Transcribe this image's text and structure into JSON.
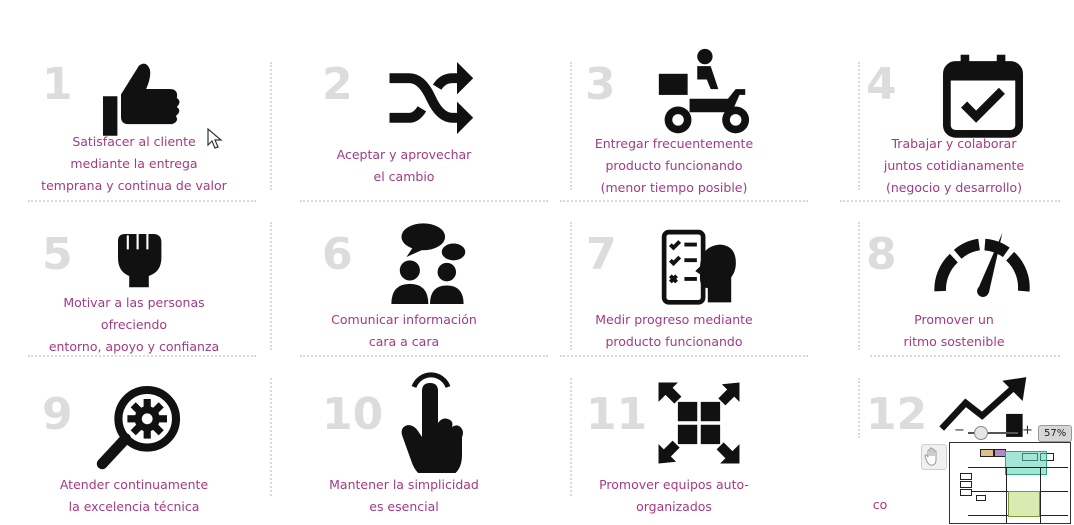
{
  "principles": [
    {
      "number": "1",
      "icon": "thumbs-up-icon",
      "lines": [
        "Satisfacer al cliente",
        "mediante la entrega",
        "temprana y continua de valor"
      ]
    },
    {
      "number": "2",
      "icon": "shuffle-arrows-icon",
      "lines": [
        "Aceptar y aprovechar",
        "el cambio"
      ]
    },
    {
      "number": "3",
      "icon": "delivery-scooter-icon",
      "lines": [
        "Entregar frecuentemente",
        "producto funcionando",
        "(menor tiempo posible)"
      ]
    },
    {
      "number": "4",
      "icon": "calendar-check-icon",
      "lines": [
        "Trabajar y colaborar",
        "juntos cotidianamente",
        "(negocio y desarrollo)"
      ]
    },
    {
      "number": "5",
      "icon": "raised-fist-icon",
      "lines": [
        "Motivar a las personas",
        "ofreciendo",
        "entorno, apoyo y confianza"
      ]
    },
    {
      "number": "6",
      "icon": "people-talking-icon",
      "lines": [
        "Comunicar información",
        "cara a cara"
      ]
    },
    {
      "number": "7",
      "icon": "checklist-person-icon",
      "lines": [
        "Medir progreso mediante",
        "producto funcionando"
      ]
    },
    {
      "number": "8",
      "icon": "speedometer-icon",
      "lines": [
        "Promover un",
        "ritmo sostenible"
      ]
    },
    {
      "number": "9",
      "icon": "magnifier-gear-icon",
      "lines": [
        "Atender continuamente",
        "la excelencia técnica"
      ]
    },
    {
      "number": "10",
      "icon": "pointing-hand-icon",
      "lines": [
        "Mantener la simplicidad",
        "es esencial"
      ]
    },
    {
      "number": "11",
      "icon": "puzzle-arrows-icon",
      "lines": [
        "Promover equipos auto-",
        "organizados"
      ]
    },
    {
      "number": "12",
      "icon": "growth-chart-icon",
      "lines": [
        "co"
      ]
    }
  ],
  "zoom": {
    "level": "57%",
    "minus": "−",
    "plus": "+"
  },
  "colors": {
    "label": "#a33a84",
    "number": "#dcdcdc",
    "icon": "#111111"
  }
}
